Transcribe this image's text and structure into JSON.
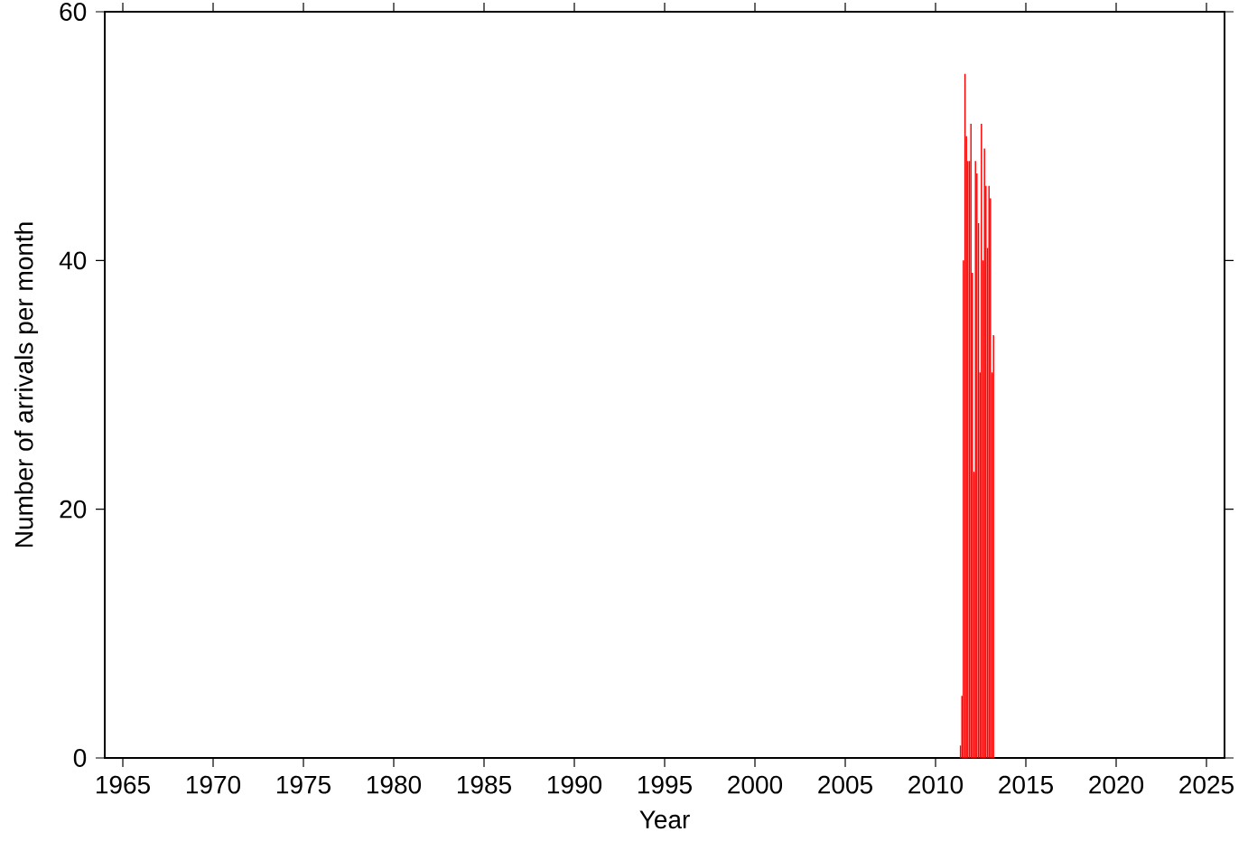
{
  "chart_data": {
    "type": "bar",
    "xlabel": "Year",
    "ylabel": "Number of arrivals per month",
    "x": [
      2011.38,
      2011.46,
      2011.54,
      2011.63,
      2011.71,
      2011.79,
      2011.88,
      2011.96,
      2012.04,
      2012.13,
      2012.21,
      2012.29,
      2012.38,
      2012.46,
      2012.54,
      2012.63,
      2012.71,
      2012.79,
      2012.88,
      2012.96,
      2013.04,
      2013.13,
      2013.21
    ],
    "values": [
      1,
      5,
      40,
      55,
      50,
      48,
      48,
      51,
      39,
      23,
      48,
      47,
      43,
      31,
      51,
      40,
      49,
      46,
      41,
      46,
      45,
      31,
      34
    ],
    "color": "#ff0000",
    "xlim": [
      1964,
      2026
    ],
    "xticks": [
      1965,
      1970,
      1975,
      1980,
      1985,
      1990,
      1995,
      2000,
      2005,
      2010,
      2015,
      2020,
      2025
    ],
    "ylim": [
      0,
      60
    ],
    "yticks": [
      0,
      20,
      40,
      60
    ],
    "grid": false
  }
}
